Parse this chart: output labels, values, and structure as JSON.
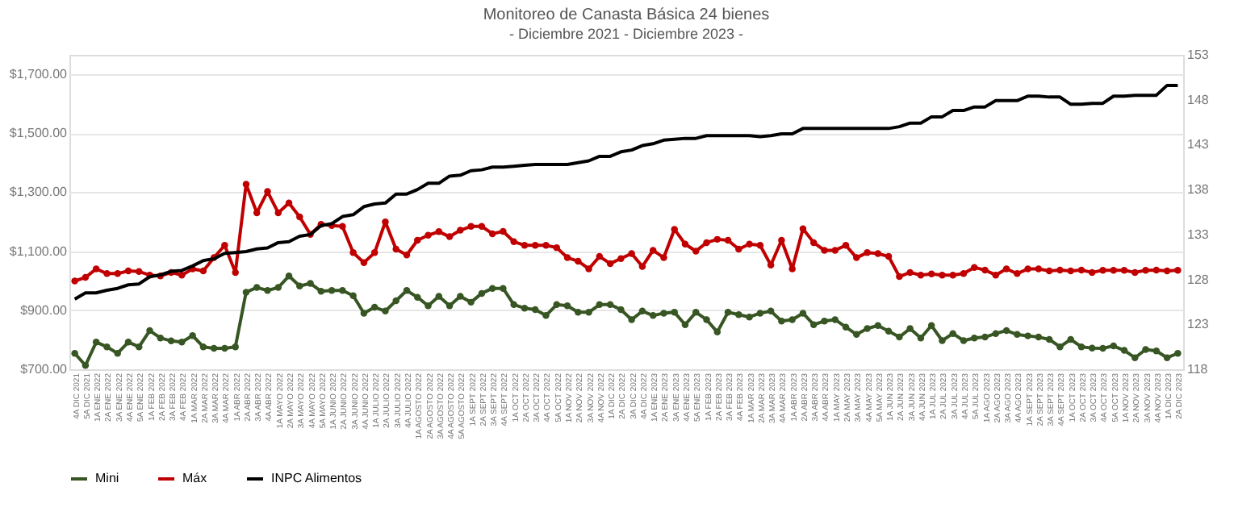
{
  "chart_data": {
    "type": "line",
    "title": "Monitoreo de Canasta Básica 24 bienes",
    "subtitle": "- Diciembre 2021 - Diciembre 2023 -",
    "categories": [
      "4A DIC 2021",
      "5A DIC 2021",
      "1A ENE 2022",
      "2A ENE 2022",
      "3A ENE 2022",
      "4A ENE 2022",
      "5A ENE 2022",
      "1A FEB 2022",
      "2A FEB 2022",
      "3A FEB 2022",
      "4A FEB 2022",
      "1A MAR 2022",
      "2A MAR 2022",
      "3A MAR 2022",
      "4A MAR 2022",
      "1A ABR 2022",
      "2A ABR 2022",
      "3A ABR 2022",
      "4A ABR 2022",
      "1A MAYO 2022",
      "2A MAYO 2022",
      "3A MAYO 2022",
      "4A MAYO 2022",
      "5A MAYO 2022",
      "1A JUNIO 2022",
      "2A JUNIO 2022",
      "3A JUNIO 2022",
      "4A JUNIO 2022",
      "1A JULIO 2022",
      "2A JULIO 2022",
      "3A JULIO 2022",
      "4A JULIO 2022",
      "1A AGOSTO 2022",
      "2A AGOSTO 2022",
      "3A AGOSTO 2022",
      "4A AGOSTO 2022",
      "5A AGOSTO 2022",
      "1A SEPT 2022",
      "2A SEPT 2022",
      "3A SEPT 2022",
      "4A SEPT 2022",
      "1A OCT 2022",
      "2A OCT 2022",
      "3A OCT 2022",
      "4A OCT 2022",
      "5A OCT 2022",
      "1A NOV 2022",
      "2A NOV 2022",
      "3A NOV 2022",
      "4A NOV 2022",
      "1A DIC 2022",
      "2A DIC 2022",
      "3A DIC 2022",
      "4A DIC 2022",
      "1A ENE 2023",
      "2A ENE 2023",
      "3A ENE 2023",
      "4A ENE 2023",
      "5A ENE 2023",
      "1A FEB 2023",
      "2A FEB 2023",
      "3A FEB 2023",
      "4A FEB 2023",
      "1A MAR 2023",
      "2A MAR 2023",
      "3A MAR 2023",
      "4A MAR 2023",
      "1A ABR 2023",
      "2A ABR 2023",
      "3A ABR 2023",
      "4A ABR 2023",
      "1A MAY 2023",
      "2A MAY 2023",
      "3A MAY 2023",
      "4A MAY 2023",
      "5A MAY 2023",
      "1A JUN 2023",
      "2A JUN 2023",
      "3A JUN 2023",
      "4A JUN 2023",
      "1A JUL 2023",
      "2A JUL 2023",
      "3A JUL 2023",
      "4A JUL 2023",
      "5A JUL 2023",
      "1A AGO 2023",
      "2A AGO 2023",
      "3A AGO 2023",
      "4A AGO 2023",
      "1A SEPT 2023",
      "2A SEPT 2023",
      "3A SEPT 2023",
      "4A SEPT 2023",
      "1A OCT 2023",
      "2A OCT 2023",
      "3A OCT 2023",
      "4A OCT 2023",
      "5A OCT 2023",
      "1A NOV 2023",
      "2A NOV 2023",
      "3A NOV 2023",
      "4A NOV 2023",
      "1A DIC 2023",
      "2A DIC 2023"
    ],
    "series": [
      {
        "name": "Mini",
        "color": "#375623",
        "marker": "circle",
        "values": [
          754,
          713,
          792,
          776,
          754,
          792,
          776,
          831,
          806,
          796,
          792,
          814,
          776,
          771,
          771,
          776,
          961,
          977,
          967,
          977,
          1016,
          982,
          991,
          964,
          967,
          967,
          949,
          890,
          910,
          897,
          932,
          967,
          944,
          915,
          947,
          915,
          947,
          927,
          957,
          974,
          974,
          919,
          907,
          902,
          882,
          919,
          915,
          893,
          893,
          919,
          919,
          902,
          868,
          897,
          882,
          890,
          893,
          851,
          893,
          868,
          826,
          893,
          885,
          877,
          890,
          897,
          863,
          868,
          890,
          851,
          863,
          868,
          843,
          818,
          838,
          848,
          829,
          809,
          838,
          806,
          848,
          797,
          821,
          797,
          806,
          809,
          821,
          831,
          818,
          813,
          809,
          801,
          776,
          801,
          776,
          772,
          771,
          779,
          764,
          739,
          767,
          762,
          739,
          754
        ]
      },
      {
        "name": "Máx",
        "color": "#c00000",
        "marker": "circle",
        "values": [
          999,
          1011,
          1040,
          1024,
          1024,
          1033,
          1031,
          1019,
          1016,
          1028,
          1019,
          1040,
          1033,
          1078,
          1120,
          1028,
          1327,
          1230,
          1302,
          1230,
          1263,
          1216,
          1157,
          1191,
          1187,
          1184,
          1095,
          1061,
          1095,
          1199,
          1107,
          1087,
          1137,
          1154,
          1166,
          1149,
          1171,
          1184,
          1184,
          1159,
          1167,
          1132,
          1120,
          1120,
          1120,
          1112,
          1078,
          1066,
          1040,
          1082,
          1058,
          1075,
          1092,
          1048,
          1103,
          1078,
          1174,
          1124,
          1100,
          1129,
          1140,
          1137,
          1107,
          1124,
          1120,
          1053,
          1137,
          1040,
          1176,
          1129,
          1103,
          1103,
          1120,
          1078,
          1095,
          1092,
          1082,
          1014,
          1028,
          1019,
          1023,
          1019,
          1019,
          1024,
          1045,
          1036,
          1019,
          1040,
          1024,
          1040,
          1040,
          1033,
          1036,
          1033,
          1036,
          1028,
          1035,
          1035,
          1035,
          1028,
          1035,
          1036,
          1033,
          1035
        ]
      },
      {
        "name": "INPC Alimentos",
        "color": "#000000",
        "marker": "none",
        "axis": "y2",
        "values": [
          125.8,
          126.5,
          126.5,
          126.8,
          127.0,
          127.4,
          127.5,
          128.3,
          128.5,
          128.9,
          129.0,
          129.5,
          130.1,
          130.3,
          130.9,
          131.0,
          131.1,
          131.4,
          131.5,
          132.1,
          132.2,
          132.8,
          133.0,
          134.0,
          134.2,
          135.0,
          135.2,
          136.1,
          136.4,
          136.5,
          137.5,
          137.5,
          138.0,
          138.7,
          138.7,
          139.5,
          139.6,
          140.1,
          140.2,
          140.5,
          140.5,
          140.6,
          140.7,
          140.8,
          140.8,
          140.8,
          140.8,
          141.0,
          141.2,
          141.7,
          141.7,
          142.2,
          142.4,
          142.9,
          143.1,
          143.5,
          143.6,
          143.7,
          143.7,
          144.0,
          144.0,
          144.0,
          144.0,
          144.0,
          143.9,
          144.0,
          144.2,
          144.2,
          144.8,
          144.8,
          144.8,
          144.8,
          144.8,
          144.8,
          144.8,
          144.8,
          144.8,
          145.0,
          145.4,
          145.4,
          146.1,
          146.1,
          146.8,
          146.8,
          147.2,
          147.2,
          147.9,
          147.9,
          147.9,
          148.4,
          148.4,
          148.3,
          148.3,
          147.5,
          147.5,
          147.6,
          147.6,
          148.4,
          148.4,
          148.5,
          148.5,
          148.5,
          149.6,
          149.6
        ]
      }
    ],
    "ylim": [
      700,
      1765
    ],
    "yticks": [
      {
        "value": 700,
        "label": "$700.00"
      },
      {
        "value": 900,
        "label": "$900.00"
      },
      {
        "value": 1100,
        "label": "$1,100.00"
      },
      {
        "value": 1300,
        "label": "$1,300.00"
      },
      {
        "value": 1500,
        "label": "$1,500.00"
      },
      {
        "value": 1700,
        "label": "$1,700.00"
      }
    ],
    "y2lim": [
      118,
      153
    ],
    "y2ticks": [
      118,
      123,
      128,
      133,
      138,
      143,
      148,
      153
    ],
    "grid": "y",
    "legend": "bottom",
    "line_style": "solid"
  }
}
